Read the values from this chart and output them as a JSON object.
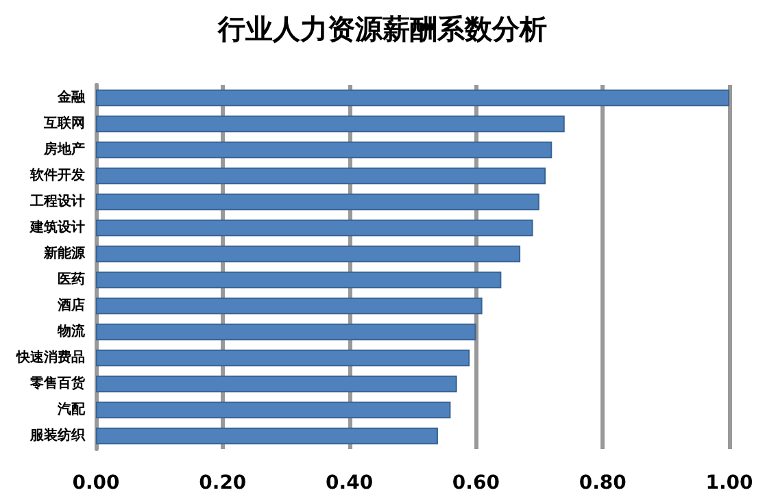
{
  "chart_data": {
    "type": "bar",
    "orientation": "horizontal",
    "title": "行业人力资源薪酬系数分析",
    "categories": [
      "金融",
      "互联网",
      "房地产",
      "软件开发",
      "工程设计",
      "建筑设计",
      "新能源",
      "医药",
      "酒店",
      "物流",
      "快速消费品",
      "零售百货",
      "汽配",
      "服装纺织"
    ],
    "values": [
      1.0,
      0.74,
      0.72,
      0.71,
      0.7,
      0.69,
      0.67,
      0.64,
      0.61,
      0.6,
      0.59,
      0.57,
      0.56,
      0.54
    ],
    "color": "#4f81bd",
    "xlim": [
      0,
      1
    ],
    "xticks": [
      {
        "value": 0,
        "label": "0.00"
      },
      {
        "value": 0.2,
        "label": "0.20"
      },
      {
        "value": 0.4,
        "label": "0.40"
      },
      {
        "value": 0.6,
        "label": "0.60"
      },
      {
        "value": 0.8,
        "label": "0.80"
      },
      {
        "value": 1,
        "label": "1.00"
      }
    ],
    "grid": "x"
  }
}
